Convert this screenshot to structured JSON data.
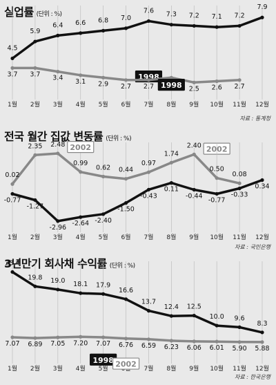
{
  "chart_data": [
    {
      "type": "line",
      "title": "실업률",
      "unit": "(단위 : %)",
      "categories": [
        "1월",
        "2월",
        "3월",
        "4월",
        "5월",
        "6월",
        "7월",
        "8월",
        "9월",
        "10월",
        "11월",
        "12월"
      ],
      "series": [
        {
          "name": "1998",
          "values": [
            4.5,
            5.9,
            6.4,
            6.6,
            6.8,
            7.0,
            7.6,
            7.3,
            7.2,
            7.1,
            7.2,
            7.9
          ],
          "color": "#111111",
          "box_fill": "#111111",
          "box_text": "#ffffff"
        },
        {
          "name": "2002",
          "values": [
            3.7,
            3.7,
            3.4,
            3.1,
            2.9,
            2.7,
            2.7,
            2.9,
            2.5,
            2.6,
            2.7,
            null
          ],
          "color": "#888888",
          "box_fill": "#ffffff",
          "box_text": "#888888"
        }
      ],
      "source": "자료 : 통계청",
      "ylim": [
        2.0,
        8.2
      ],
      "grid": true
    },
    {
      "type": "line",
      "title": "전국 월간 집값 변동률",
      "unit": "(단위 : %)",
      "categories": [
        "1월",
        "2월",
        "3월",
        "4월",
        "5월",
        "6월",
        "7월",
        "8월",
        "9월",
        "10월",
        "11월",
        "12월"
      ],
      "series": [
        {
          "name": "2002",
          "values": [
            0.02,
            2.35,
            2.48,
            0.99,
            0.62,
            0.44,
            0.97,
            1.74,
            2.4,
            0.5,
            0.08,
            null
          ],
          "color": "#888888",
          "box_fill": "#ffffff",
          "box_text": "#888888"
        },
        {
          "name": "1998",
          "values": [
            -0.77,
            -1.27,
            -2.96,
            -2.64,
            -2.4,
            -1.5,
            -0.43,
            0.11,
            -0.44,
            -0.77,
            -0.33,
            0.34
          ],
          "color": "#111111",
          "box_fill": "#111111",
          "box_text": "#ffffff"
        }
      ],
      "source": "자료 : 국민은행",
      "ylim": [
        -3.3,
        2.7
      ],
      "grid": true
    },
    {
      "type": "line",
      "title": "3년만기 회사채 수익률",
      "unit": "(단위 : %)",
      "categories": [
        "1월",
        "2월",
        "3월",
        "4월",
        "5월",
        "6월",
        "7월",
        "8월",
        "9월",
        "10월",
        "11월",
        "12월"
      ],
      "series": [
        {
          "name": "1998",
          "values": [
            23.4,
            19.8,
            19.0,
            18.1,
            17.9,
            16.6,
            13.7,
            12.4,
            12.5,
            10.0,
            9.6,
            8.3
          ],
          "color": "#111111",
          "box_fill": "#111111",
          "box_text": "#ffffff"
        },
        {
          "name": "2002",
          "values": [
            7.07,
            6.89,
            7.05,
            7.2,
            7.07,
            6.76,
            6.59,
            6.23,
            6.06,
            6.01,
            5.9,
            5.88
          ],
          "color": "#888888",
          "box_fill": "#ffffff",
          "box_text": "#888888"
        }
      ],
      "source": "자료 : 한국은행",
      "ylim": [
        5.0,
        24.0
      ],
      "grid": true
    }
  ]
}
